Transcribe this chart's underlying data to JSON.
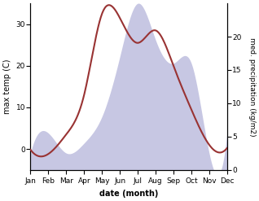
{
  "months": [
    "Jan",
    "Feb",
    "Mar",
    "Apr",
    "May",
    "Jun",
    "Jul",
    "Aug",
    "Sep",
    "Oct",
    "Nov",
    "Dec"
  ],
  "temp_C": [
    -0.2,
    -1.2,
    3.5,
    13.0,
    32.5,
    31.5,
    25.5,
    28.5,
    20.0,
    9.5,
    1.0,
    0.2
  ],
  "precip_kg": [
    2.5,
    5.5,
    2.5,
    4.0,
    8.0,
    17.0,
    25.0,
    19.5,
    16.0,
    16.0,
    2.5,
    5.5
  ],
  "temp_color": "#993333",
  "precip_color_fill": "#9999cc",
  "precip_alpha": 0.55,
  "ylabel_left": "max temp (C)",
  "ylabel_right": "med. precipitation (kg/m2)",
  "xlabel": "date (month)",
  "ylim_left": [
    -5,
    35
  ],
  "ylim_right": [
    0,
    25
  ],
  "yticks_left": [
    0,
    10,
    20,
    30
  ],
  "yticks_right": [
    0,
    5,
    10,
    15,
    20
  ],
  "bg_color": "#ffffff",
  "label_fontsize": 7,
  "tick_fontsize": 6.5
}
